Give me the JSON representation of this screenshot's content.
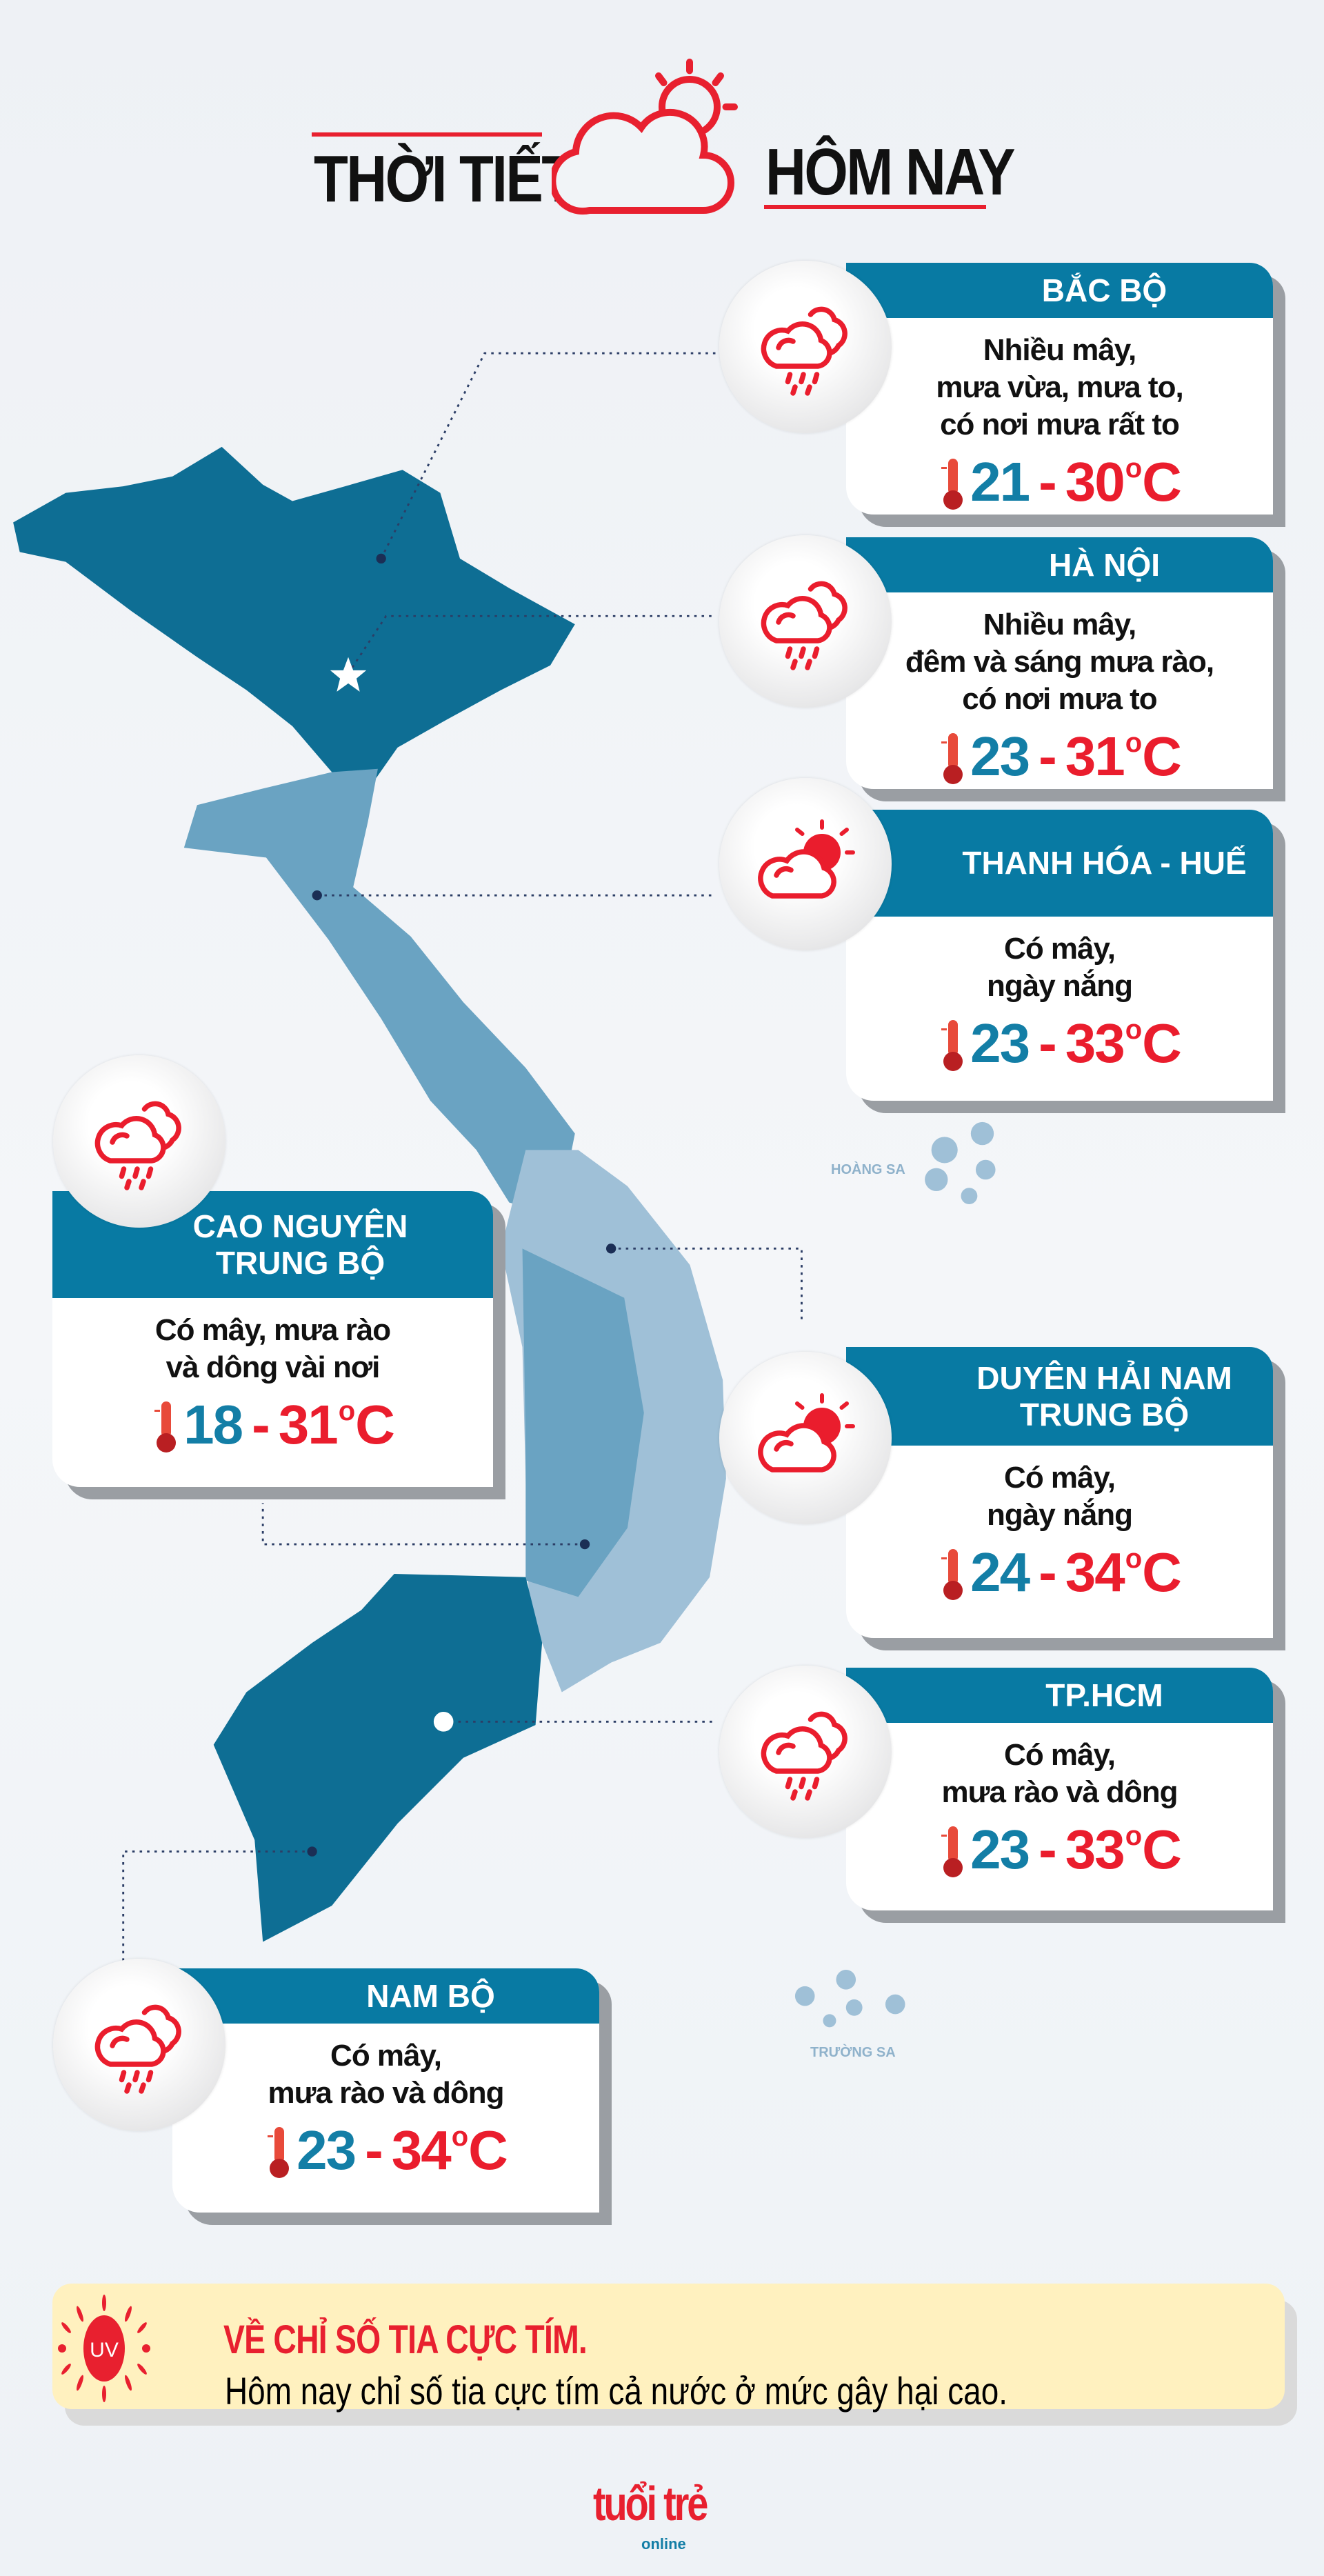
{
  "header": {
    "title_left": "THỜI TIẾT",
    "title_right": "HÔM NAY",
    "icon": "cloud-sun-icon"
  },
  "colors": {
    "accent_red": "#e8202f",
    "teal": "#087aa3",
    "map_dark": "#0e6e94",
    "map_mid": "#6aa3c2",
    "map_light": "#9fc0d7",
    "uv_bg": "#fff1bf"
  },
  "regions": [
    {
      "name": "BẮC BỘ",
      "desc": [
        "Nhiều mây,",
        "mưa vừa, mưa to,",
        "có nơi mưa rất to"
      ],
      "min": "21",
      "max": "30",
      "unit": "C",
      "icon": "rain-cloud-icon"
    },
    {
      "name": "HÀ NỘI",
      "desc": [
        "Nhiều mây,",
        "đêm và sáng mưa rào,",
        "có nơi mưa to"
      ],
      "min": "23",
      "max": "31",
      "unit": "C",
      "icon": "rain-cloud-icon"
    },
    {
      "name": "THANH HÓA - HUẾ",
      "desc": [
        "Có mây,",
        "ngày nắng"
      ],
      "min": "23",
      "max": "33",
      "unit": "C",
      "icon": "sun-cloud-icon"
    },
    {
      "name": "CAO NGUYÊN TRUNG BỘ",
      "desc": [
        "Có mây, mưa rào",
        "và dông vài nơi"
      ],
      "min": "18",
      "max": "31",
      "unit": "C",
      "icon": "rain-cloud-icon"
    },
    {
      "name": "DUYÊN HẢI NAM TRUNG BỘ",
      "desc": [
        "Có mây,",
        "ngày nắng"
      ],
      "min": "24",
      "max": "34",
      "unit": "C",
      "icon": "sun-cloud-icon"
    },
    {
      "name": "TP.HCM",
      "desc": [
        "Có mây,",
        "mưa rào và dông"
      ],
      "min": "23",
      "max": "33",
      "unit": "C",
      "icon": "rain-cloud-icon"
    },
    {
      "name": "NAM BỘ",
      "desc": [
        "Có mây,",
        "mưa rào và dông"
      ],
      "min": "23",
      "max": "34",
      "unit": "C",
      "icon": "rain-cloud-icon"
    }
  ],
  "map": {
    "islands": [
      "HOÀNG SA",
      "TRƯỜNG SA"
    ]
  },
  "uv": {
    "badge": "UV",
    "title": "VỀ CHỈ SỐ TIA CỰC TÍM.",
    "text": "Hôm nay chỉ số tia cực tím cả nước ở mức gây hại cao."
  },
  "footer": {
    "logo_main": "tuổi trẻ",
    "logo_sub": "online"
  }
}
